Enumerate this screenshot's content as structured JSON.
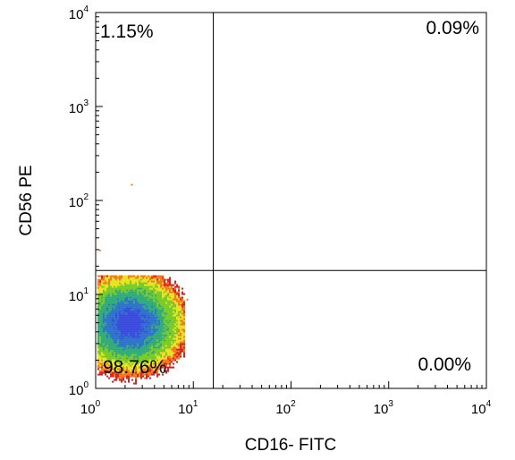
{
  "chart_data": {
    "type": "scatter",
    "title": "",
    "xlabel": "CD16- FITC",
    "ylabel": "CD56 PE",
    "x_scale": "log",
    "y_scale": "log",
    "xlim": [
      1,
      10000
    ],
    "ylim": [
      1,
      10000
    ],
    "x_ticks": [
      {
        "base": "10",
        "exp": "0"
      },
      {
        "base": "10",
        "exp": "1"
      },
      {
        "base": "10",
        "exp": "2"
      },
      {
        "base": "10",
        "exp": "3"
      },
      {
        "base": "10",
        "exp": "4"
      }
    ],
    "y_ticks": [
      {
        "base": "10",
        "exp": "0"
      },
      {
        "base": "10",
        "exp": "1"
      },
      {
        "base": "10",
        "exp": "2"
      },
      {
        "base": "10",
        "exp": "3"
      },
      {
        "base": "10",
        "exp": "4"
      }
    ],
    "gate": {
      "x": 16,
      "y": 18
    },
    "quadrants": {
      "upper_left": "1.15%",
      "upper_right": "0.09%",
      "lower_left": "98.76%",
      "lower_right": "0.00%"
    },
    "population": {
      "center": [
        2.2,
        5.0
      ],
      "spread_x_decades": 0.28,
      "spread_y_decades": 0.26
    },
    "density_colors": [
      "#d42020",
      "#f07820",
      "#e8e020",
      "#78c828",
      "#30a878",
      "#2c70c8",
      "#3848d8"
    ],
    "grid": false
  }
}
